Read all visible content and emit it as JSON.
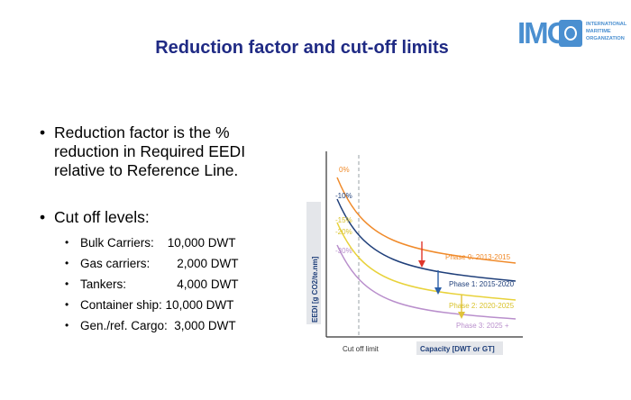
{
  "title": "Reduction factor and cut-off limits",
  "logo": {
    "letters": "IMO",
    "lines": [
      "INTERNATIONAL",
      "MARITIME",
      "ORGANIZATION"
    ],
    "color": "#4a8fd0"
  },
  "bullets": [
    {
      "lines": [
        "Reduction factor is the %",
        "reduction in Required EEDI",
        "relative to Reference Line."
      ]
    },
    {
      "lines": [
        "Cut off levels:"
      ],
      "sub": [
        "Bulk Carriers:    10,000 DWT",
        "Gas carriers:        2,000 DWT",
        "Tankers:               4,000 DWT",
        "Container ship: 10,000 DWT",
        "Gen./ref. Cargo:  3,000 DWT"
      ]
    }
  ],
  "chart": {
    "y_axis_label": "EEDI  [g CO2/te.nm]",
    "x_axis_label": "Capacity  [DWT or GT]",
    "cutoff_label": "Cut off limit",
    "y_ticks": [
      "0%",
      "-10%",
      "-15%",
      "-20%",
      "-30%"
    ],
    "phases": [
      {
        "label": "Phase 0:  2013-2015",
        "color": "#f08a2a"
      },
      {
        "label": "Phase 1: 2015-2020",
        "color": "#1f3f7a"
      },
      {
        "label": "Phase 2: 2020-2025",
        "color": "#e8d23a"
      },
      {
        "label": "Phase 3: 2025 +",
        "color": "#b98fcc"
      }
    ],
    "arrows": [
      "#e0362a",
      "#2b5fa8",
      "#e0c23a"
    ]
  }
}
